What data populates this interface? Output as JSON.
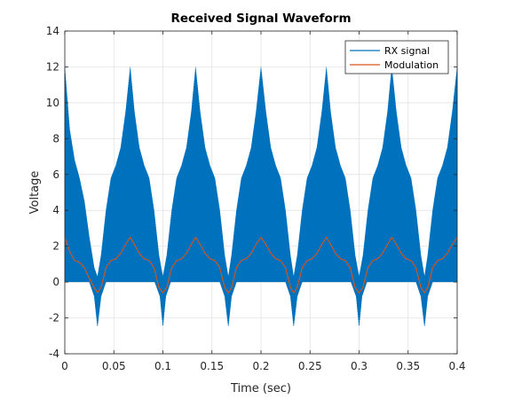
{
  "chart_data": {
    "type": "line",
    "title": "Received Signal Waveform",
    "xlabel": "Time (sec)",
    "ylabel": "Voltage",
    "xlim": [
      0,
      0.4
    ],
    "ylim": [
      -4,
      14
    ],
    "xticks": [
      0,
      0.05,
      0.1,
      0.15,
      0.2,
      0.25,
      0.3,
      0.35,
      0.4
    ],
    "xtick_labels": [
      "0",
      "0.05",
      "0.1",
      "0.15",
      "0.2",
      "0.25",
      "0.3",
      "0.35",
      "0.4"
    ],
    "yticks": [
      -4,
      -2,
      0,
      2,
      4,
      6,
      8,
      10,
      12,
      14
    ],
    "ytick_labels": [
      "-4",
      "-2",
      "0",
      "2",
      "4",
      "6",
      "8",
      "10",
      "12",
      "14"
    ],
    "grid": true,
    "legend_position": "top-right",
    "series": [
      {
        "name": "RX signal",
        "color": "#0072BD",
        "kind": "oscillating envelope",
        "upper_envelope": {
          "x": [
            0,
            0.005,
            0.01,
            0.015,
            0.02,
            0.025,
            0.03,
            0.0333,
            0.037,
            0.042,
            0.047,
            0.052,
            0.057,
            0.062,
            0.0667,
            0.071,
            0.076,
            0.081,
            0.086,
            0.091,
            0.096,
            0.1,
            0.104,
            0.109,
            0.114,
            0.119,
            0.124,
            0.129,
            0.1333,
            0.138,
            0.143,
            0.148,
            0.153,
            0.158,
            0.163,
            0.1667,
            0.17,
            0.175,
            0.18,
            0.185,
            0.19,
            0.195,
            0.2,
            0.205,
            0.21,
            0.215,
            0.22,
            0.225,
            0.23,
            0.2333,
            0.237,
            0.242,
            0.247,
            0.252,
            0.257,
            0.262,
            0.2667,
            0.271,
            0.276,
            0.281,
            0.286,
            0.291,
            0.296,
            0.3,
            0.304,
            0.309,
            0.314,
            0.319,
            0.324,
            0.329,
            0.3333,
            0.338,
            0.343,
            0.348,
            0.353,
            0.358,
            0.363,
            0.3667,
            0.37,
            0.375,
            0.38,
            0.385,
            0.39,
            0.395,
            0.4
          ],
          "y": [
            12,
            8.5,
            6.8,
            5.8,
            4.5,
            2.5,
            0.8,
            0.3,
            1.5,
            4.0,
            5.8,
            6.5,
            7.5,
            9.5,
            12,
            9.5,
            7.5,
            6.5,
            5.8,
            4.0,
            1.5,
            0.3,
            1.5,
            4.0,
            5.8,
            6.5,
            7.5,
            9.5,
            12,
            9.5,
            7.5,
            6.5,
            5.8,
            4.0,
            1.5,
            0.3,
            1.5,
            4.0,
            5.8,
            6.5,
            7.5,
            9.5,
            12,
            9.5,
            7.5,
            6.5,
            5.8,
            4.0,
            1.5,
            0.3,
            1.5,
            4.0,
            5.8,
            6.5,
            7.5,
            9.5,
            12,
            9.5,
            7.5,
            6.5,
            5.8,
            4.0,
            1.5,
            0.3,
            1.5,
            4.0,
            5.8,
            6.5,
            7.5,
            9.5,
            12,
            9.5,
            7.5,
            6.5,
            5.8,
            4.0,
            1.5,
            0.3,
            1.5,
            4.0,
            5.8,
            6.5,
            7.5,
            9.5,
            12
          ]
        },
        "lower_envelope": {
          "x": [
            0,
            0.025,
            0.03,
            0.0333,
            0.037,
            0.042,
            0.0917,
            0.097,
            0.1,
            0.103,
            0.108,
            0.158,
            0.163,
            0.1667,
            0.17,
            0.175,
            0.225,
            0.23,
            0.2333,
            0.237,
            0.242,
            0.2917,
            0.297,
            0.3,
            0.303,
            0.308,
            0.358,
            0.363,
            0.3667,
            0.37,
            0.375,
            0.4
          ],
          "y": [
            0,
            0,
            -0.8,
            -2.5,
            -0.8,
            0,
            0,
            -0.8,
            -2.5,
            -0.8,
            0,
            0,
            -0.8,
            -2.5,
            -0.8,
            0,
            0,
            -0.8,
            -2.5,
            -0.8,
            0,
            0,
            -0.8,
            -2.5,
            -0.8,
            0,
            0,
            -0.8,
            -2.5,
            -0.8,
            0,
            0
          ]
        }
      },
      {
        "name": "Modulation",
        "color": "#D95319",
        "kind": "line",
        "x": [
          0,
          0.005,
          0.01,
          0.015,
          0.02,
          0.025,
          0.03,
          0.0333,
          0.037,
          0.042,
          0.047,
          0.052,
          0.057,
          0.062,
          0.0667,
          0.071,
          0.076,
          0.081,
          0.086,
          0.091,
          0.096,
          0.1,
          0.104,
          0.109,
          0.114,
          0.119,
          0.124,
          0.129,
          0.1333,
          0.138,
          0.143,
          0.148,
          0.153,
          0.158,
          0.163,
          0.1667,
          0.17,
          0.175,
          0.18,
          0.185,
          0.19,
          0.195,
          0.2,
          0.205,
          0.21,
          0.215,
          0.22,
          0.225,
          0.23,
          0.2333,
          0.237,
          0.242,
          0.247,
          0.252,
          0.257,
          0.262,
          0.2667,
          0.271,
          0.276,
          0.281,
          0.286,
          0.291,
          0.296,
          0.3,
          0.304,
          0.309,
          0.314,
          0.319,
          0.324,
          0.329,
          0.3333,
          0.338,
          0.343,
          0.348,
          0.353,
          0.358,
          0.363,
          0.3667,
          0.37,
          0.375,
          0.38,
          0.385,
          0.39,
          0.395,
          0.4
        ],
        "y": [
          2.5,
          1.7,
          1.2,
          1.1,
          0.8,
          0.2,
          -0.3,
          -0.6,
          -0.3,
          0.8,
          1.2,
          1.3,
          1.6,
          2.1,
          2.5,
          2.1,
          1.6,
          1.3,
          1.2,
          0.8,
          -0.3,
          -0.6,
          -0.3,
          0.8,
          1.2,
          1.3,
          1.6,
          2.1,
          2.5,
          2.1,
          1.6,
          1.3,
          1.2,
          0.8,
          -0.3,
          -0.6,
          -0.3,
          0.8,
          1.2,
          1.3,
          1.6,
          2.1,
          2.5,
          2.1,
          1.6,
          1.3,
          1.2,
          0.8,
          -0.3,
          -0.6,
          -0.3,
          0.8,
          1.2,
          1.3,
          1.6,
          2.1,
          2.5,
          2.1,
          1.6,
          1.3,
          1.2,
          0.8,
          -0.3,
          -0.6,
          -0.3,
          0.8,
          1.2,
          1.3,
          1.6,
          2.1,
          2.5,
          2.1,
          1.6,
          1.3,
          1.2,
          0.8,
          -0.3,
          -0.6,
          -0.3,
          0.8,
          1.2,
          1.3,
          1.6,
          2.1,
          2.5
        ]
      }
    ]
  }
}
